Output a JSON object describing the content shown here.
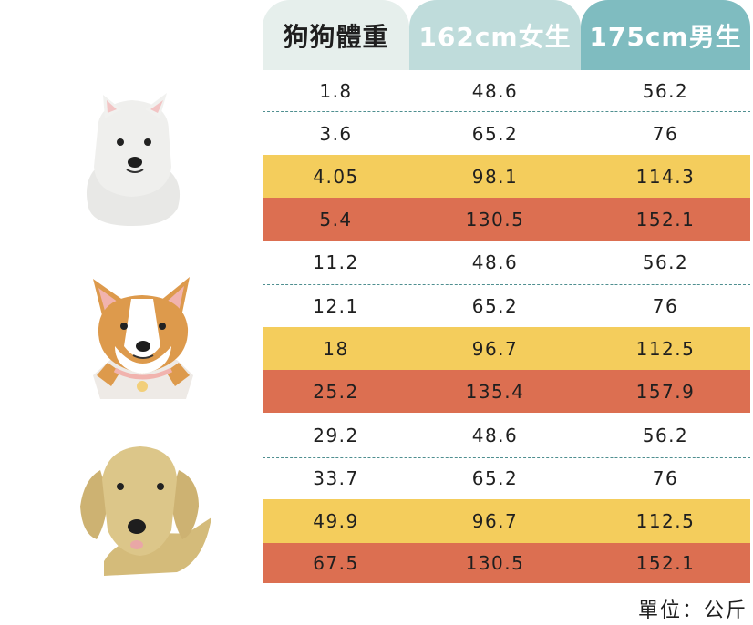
{
  "headers": [
    "狗狗體重",
    "162cm女生",
    "175cm男生"
  ],
  "colors": {
    "plain": "#ffffff",
    "yellow": "#f4cd5c",
    "red": "#dc6f51"
  },
  "rows": [
    {
      "cells": [
        "1.8",
        "48.6",
        "56.2"
      ],
      "color": "plain"
    },
    {
      "cells": [
        "3.6",
        "65.2",
        "76"
      ],
      "color": "plain"
    },
    {
      "cells": [
        "4.05",
        "98.1",
        "114.3"
      ],
      "color": "yellow"
    },
    {
      "cells": [
        "5.4",
        "130.5",
        "152.1"
      ],
      "color": "red"
    },
    {
      "cells": [
        "11.2",
        "48.6",
        "56.2"
      ],
      "color": "plain"
    },
    {
      "cells": [
        "12.1",
        "65.2",
        "76"
      ],
      "color": "plain"
    },
    {
      "cells": [
        "18",
        "96.7",
        "112.5"
      ],
      "color": "yellow"
    },
    {
      "cells": [
        "25.2",
        "135.4",
        "157.9"
      ],
      "color": "red"
    },
    {
      "cells": [
        "29.2",
        "48.6",
        "56.2"
      ],
      "color": "plain"
    },
    {
      "cells": [
        "33.7",
        "65.2",
        "76"
      ],
      "color": "plain"
    },
    {
      "cells": [
        "49.9",
        "96.7",
        "112.5"
      ],
      "color": "yellow"
    },
    {
      "cells": [
        "67.5",
        "130.5",
        "152.1"
      ],
      "color": "red"
    }
  ],
  "unit": "單位：公斤",
  "dogs": [
    "white-fluffy-dog-icon",
    "corgi-dog-icon",
    "golden-retriever-dog-icon"
  ]
}
